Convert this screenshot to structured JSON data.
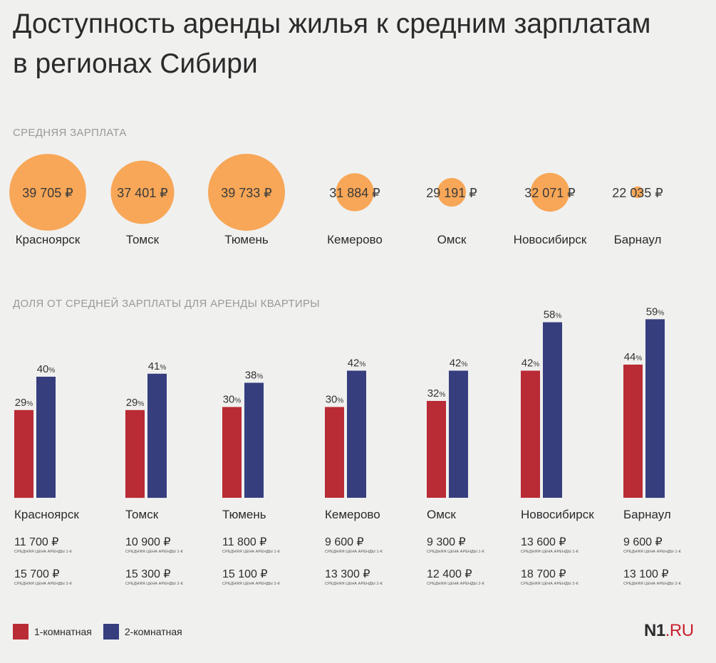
{
  "title": {
    "line1": "Доступность аренды жилья к средним зарплатам",
    "line2": "в регионах Сибири"
  },
  "colors": {
    "bubble": "#f7a757",
    "one_room": "#b92b35",
    "two_room": "#363e7e"
  },
  "chart_data": [
    {
      "type": "bubble",
      "title": "СРЕДНЯЯ ЗАРПЛАТА",
      "categories": [
        "Красноярск",
        "Томск",
        "Тюмень",
        "Кемерово",
        "Омск",
        "Новосибирск",
        "Барнаул"
      ],
      "values": [
        39705,
        37401,
        39733,
        31884,
        29191,
        32071,
        22035
      ],
      "labels": [
        "39 705 ₽",
        "37 401 ₽",
        "39 733 ₽",
        "31 884 ₽",
        "29 191 ₽",
        "32 071 ₽",
        "22 035 ₽"
      ]
    },
    {
      "type": "bar",
      "title": "ДОЛЯ ОТ СРЕДНЕЙ ЗАРПЛАТЫ ДЛЯ АРЕНДЫ КВАРТИРЫ",
      "categories": [
        "Красноярск",
        "Томск",
        "Тюмень",
        "Кемерово",
        "Омск",
        "Новосибирск",
        "Барнаул"
      ],
      "series": [
        {
          "name": "1-комнатная",
          "values": [
            29,
            29,
            30,
            30,
            32,
            42,
            44
          ]
        },
        {
          "name": "2-комнатная",
          "values": [
            40,
            41,
            38,
            42,
            42,
            58,
            59
          ]
        }
      ],
      "unit": "%",
      "ylim": [
        0,
        60
      ]
    }
  ],
  "rent": {
    "one_room": [
      "11 700 ₽",
      "10 900 ₽",
      "11 800 ₽",
      "9 600 ₽",
      "9 300 ₽",
      "13 600 ₽",
      "9 600 ₽"
    ],
    "two_room": [
      "15 700 ₽",
      "15 300 ₽",
      "15 100 ₽",
      "13 300 ₽",
      "12 400 ₽",
      "18 700 ₽",
      "13 100 ₽"
    ],
    "one_room_note": "СРЕДНЯЯ ЦЕНА АРЕНДЫ 1-К",
    "two_room_note": "СРЕДНЯЯ ЦЕНА АРЕНДЫ 2-К"
  },
  "legend": {
    "one_room": "1-комнатная",
    "two_room": "2-комнатная"
  },
  "logo": {
    "main": "N1",
    "suffix": ".RU"
  }
}
